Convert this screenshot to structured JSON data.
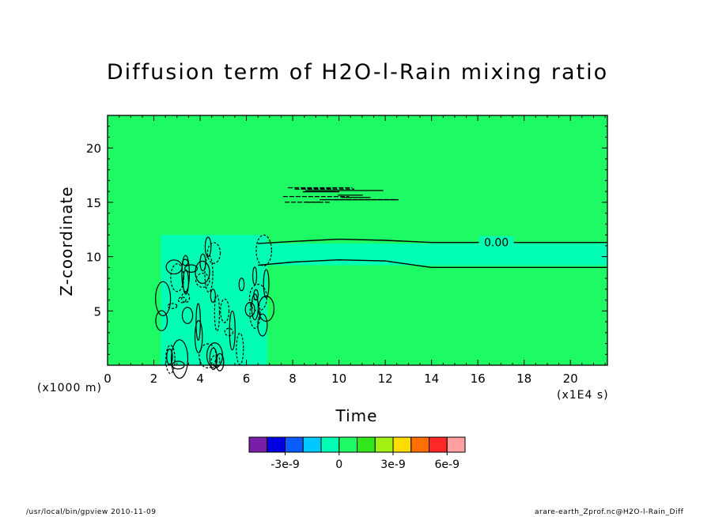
{
  "chart_data": {
    "type": "heatmap",
    "title": "Diffusion term of H2O-l-Rain mixing ratio",
    "xlabel": "Time",
    "ylabel": "Z-coordinate",
    "x_unit": "(x1E4 s)",
    "y_unit": "(x1000 m)",
    "xlim": [
      0,
      21.6
    ],
    "ylim": [
      0,
      23
    ],
    "x_ticks": [
      0,
      2,
      4,
      6,
      8,
      10,
      12,
      14,
      16,
      18,
      20
    ],
    "y_ticks": [
      5,
      10,
      15,
      20
    ],
    "contour_label": "0.00",
    "contour_label_position": [
      16.8,
      11.3
    ],
    "regions": [
      {
        "desc": "convective band",
        "x": [
          2.3,
          6.9
        ],
        "y": [
          0,
          12
        ],
        "value": -1e-09
      },
      {
        "desc": "anvil layer",
        "x": [
          6.5,
          21.6
        ],
        "y": [
          9.2,
          11.2
        ],
        "value": -1e-09
      }
    ],
    "contour_lines": [
      {
        "x": [
          6.5,
          8,
          10,
          12,
          14,
          21.6
        ],
        "y": [
          11.2,
          11.4,
          11.6,
          11.5,
          11.3,
          11.3
        ]
      },
      {
        "x": [
          6.5,
          8,
          10,
          12,
          14,
          21.6
        ],
        "y": [
          9.2,
          9.5,
          9.7,
          9.6,
          9.0,
          9.0
        ]
      }
    ],
    "background_value": 0,
    "colorbar": {
      "colors": [
        "#7a1ea8",
        "#0000e0",
        "#0a5cff",
        "#00c8ff",
        "#00ffb4",
        "#1efa64",
        "#32e61e",
        "#a0f014",
        "#ffdc00",
        "#ff6e00",
        "#ff2828",
        "#ffa0a0"
      ],
      "tick_labels": [
        "-3e-9",
        "0",
        "3e-9",
        "6e-9"
      ]
    }
  },
  "footer": {
    "left": "/usr/local/bin/gpview   2010-11-09",
    "right": "arare-earth_Zprof.nc@H2O-l-Rain_Diff"
  }
}
